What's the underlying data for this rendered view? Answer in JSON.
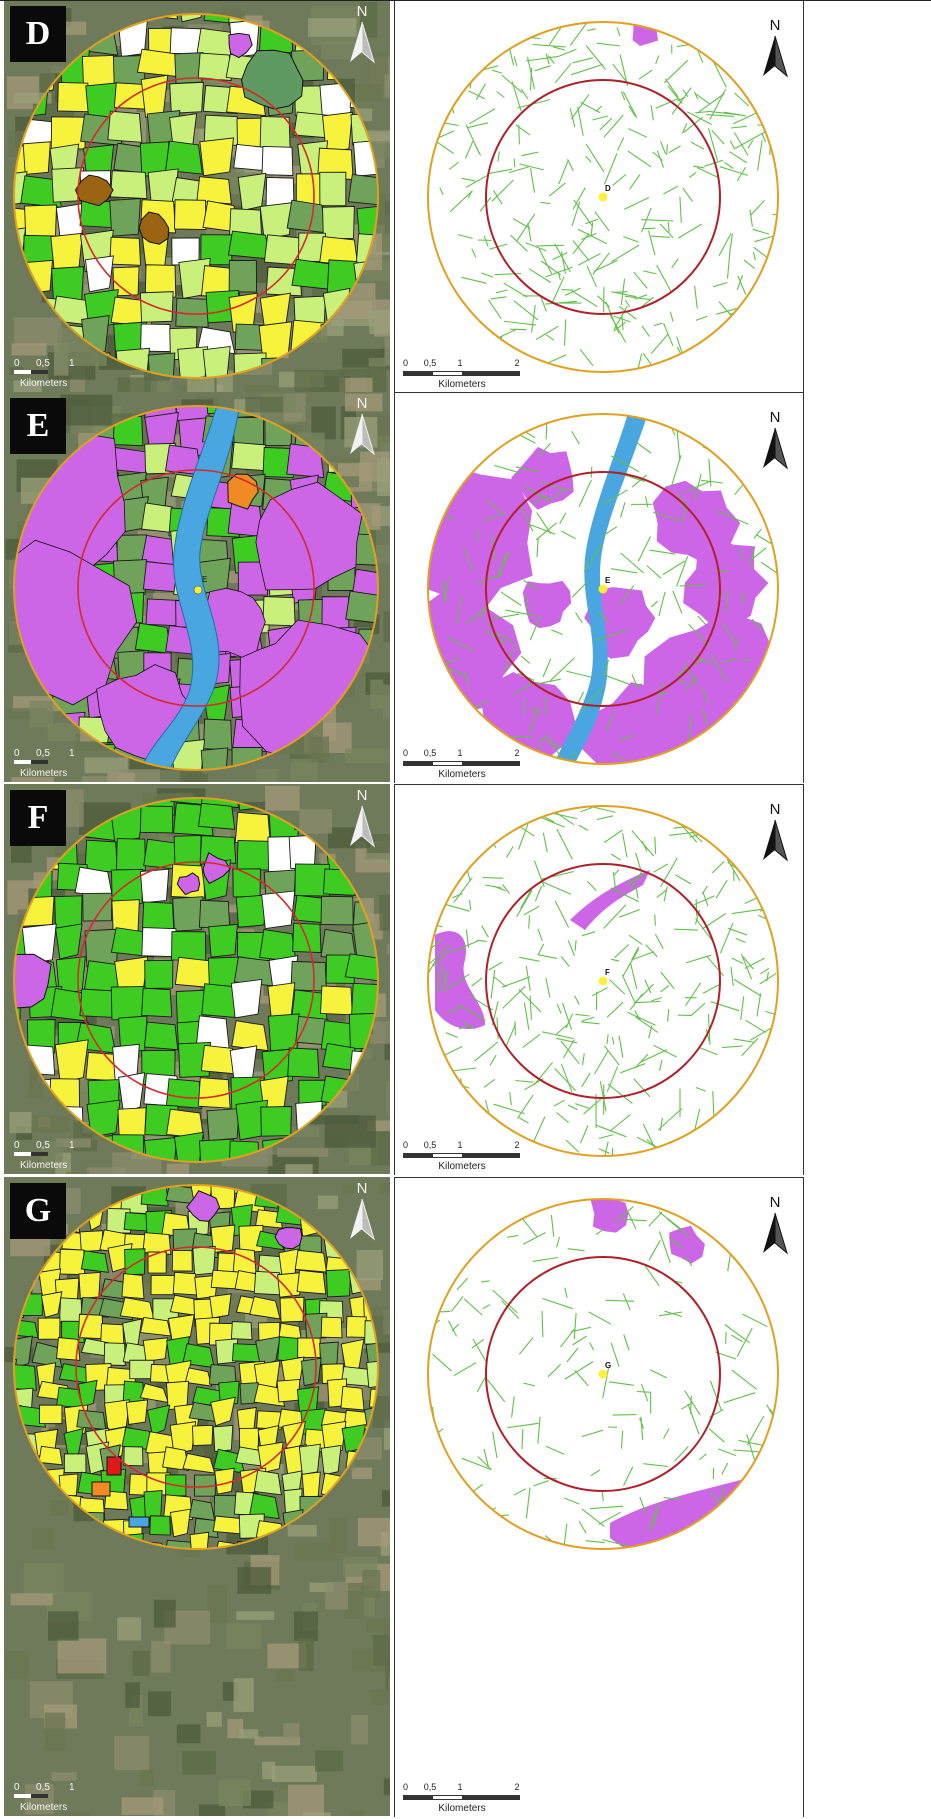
{
  "panels": [
    {
      "label": "D",
      "point_label": "D",
      "land_theme": "mixed"
    },
    {
      "label": "E",
      "point_label": "E",
      "land_theme": "river"
    },
    {
      "label": "F",
      "point_label": "F",
      "land_theme": "grassland"
    },
    {
      "label": "G",
      "point_label": "G",
      "land_theme": "crops"
    }
  ],
  "scale_bar": {
    "left_ticks": [
      "0",
      "0,5",
      "1"
    ],
    "right_ticks": [
      "0",
      "0,5",
      "1",
      "2"
    ],
    "unit_label": "Kilometers"
  },
  "north_label": "N",
  "colors": {
    "outer_ring": "#e0a020",
    "inner_ring": "#d42a2a",
    "inner_ring_right": "#b0202a",
    "hedge_line": "#62c04a",
    "urban": "#cc66e6",
    "water": "#4aa6e0",
    "crop_yellow": "#f7f33c",
    "grass_light": "#c9f07a",
    "grass_green": "#3fcc22",
    "grass_dark": "#6fa35a",
    "bare_brown": "#9a6412",
    "point": "#ffee3a"
  }
}
